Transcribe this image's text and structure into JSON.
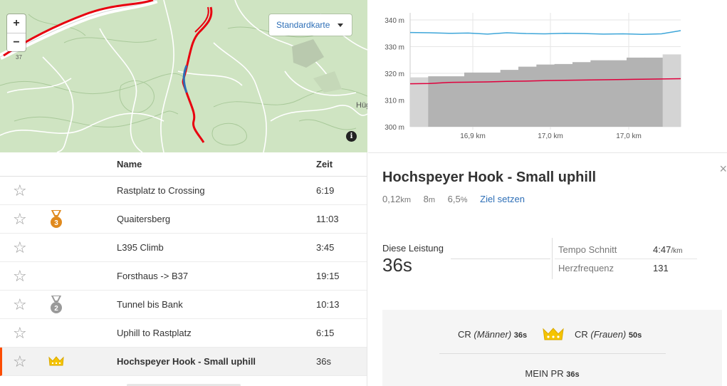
{
  "map": {
    "zoom_in": "+",
    "zoom_out": "−",
    "map_type": "Standardkarte",
    "info": "i",
    "road_label": "37",
    "place_label": "Hüg"
  },
  "elevation_chart": {
    "y_ticks": [
      "340 m",
      "330 m",
      "320 m",
      "310 m",
      "300 m"
    ],
    "x_ticks": [
      "16,9 km",
      "17,0 km",
      "17,0 km"
    ]
  },
  "chart_data": {
    "type": "area",
    "ylim": [
      300,
      340
    ],
    "x": [
      0,
      1,
      2,
      3,
      4,
      5,
      6,
      7,
      8,
      9,
      10,
      11,
      12,
      13,
      14
    ],
    "series": [
      {
        "values": [
          318.5,
          318.9,
          318.9,
          320.3,
          320.3,
          321.3,
          322.5,
          323.3,
          323.5,
          324.2,
          324.9,
          324.9,
          325.9,
          325.9,
          327.1
        ]
      },
      {
        "values": [
          316.1,
          316.2,
          316.6,
          316.7,
          316.8,
          317.0,
          317.1,
          317.3,
          317.4,
          317.5,
          317.6,
          317.7,
          317.8,
          317.9,
          318.0
        ]
      },
      {
        "values": [
          335.3,
          335.2,
          335.0,
          335.1,
          334.7,
          335.2,
          334.9,
          334.8,
          335.0,
          334.9,
          334.7,
          334.8,
          334.6,
          334.8,
          336.0
        ]
      }
    ],
    "colors": {
      "terrain": "#b3b3b3",
      "heartrate_line": "#e0003c",
      "pace_line": "#3ea6d9"
    }
  },
  "table": {
    "col_name": "Name",
    "col_time": "Zeit",
    "rows": [
      {
        "name": "Rastplatz to Crossing",
        "time": "6:19",
        "medal": ""
      },
      {
        "name": "Quaitersberg",
        "time": "11:03",
        "medal": "3"
      },
      {
        "name": "L395 Climb",
        "time": "3:45",
        "medal": ""
      },
      {
        "name": "Forsthaus -> B37",
        "time": "19:15",
        "medal": ""
      },
      {
        "name": "Tunnel bis Bank",
        "time": "10:13",
        "medal": "2"
      },
      {
        "name": "Uphill to Rastplatz",
        "time": "6:15",
        "medal": ""
      },
      {
        "name": "Hochspeyer Hook - Small uphill",
        "time": "36s",
        "medal": "crown"
      }
    ],
    "star_glyph": "☆"
  },
  "detail": {
    "title": "Hochspeyer Hook - Small uphill",
    "distance": "0,12",
    "distance_unit": "km",
    "elevation": "8",
    "elevation_unit": "m",
    "grade": "6,5",
    "grade_unit": "%",
    "goal_link": "Ziel setzen",
    "close": "×",
    "perf_label": "Diese Leistung",
    "perf_value": "36s",
    "pace_label": "Tempo Schnitt",
    "pace_value": "4:47",
    "pace_unit": "/km",
    "hr_label": "Herzfrequenz",
    "hr_value": "131",
    "cr_men_label": "CR",
    "cr_men_gender": "(Männer)",
    "cr_men_value": "36s",
    "cr_women_label": "CR",
    "cr_women_gender": "(Frauen)",
    "cr_women_value": "50s",
    "pr_label": "MEIN PR",
    "pr_value": "36s"
  }
}
